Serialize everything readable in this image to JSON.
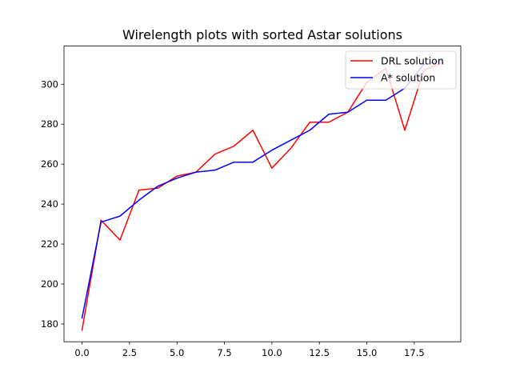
{
  "chart_data": {
    "type": "line",
    "title": "Wirelength plots with sorted Astar solutions",
    "xlabel": "",
    "ylabel": "",
    "xlim": [
      -0.95,
      19.95
    ],
    "ylim": [
      171.1,
      319.1
    ],
    "xticks": [
      0,
      2.5,
      5,
      7.5,
      10,
      12.5,
      15,
      17.5
    ],
    "xtick_labels": [
      "0.0",
      "2.5",
      "5.0",
      "7.5",
      "10.0",
      "12.5",
      "15.0",
      "17.5"
    ],
    "yticks": [
      180,
      200,
      220,
      240,
      260,
      280,
      300
    ],
    "ytick_labels": [
      "180",
      "200",
      "220",
      "240",
      "260",
      "280",
      "300"
    ],
    "grid": false,
    "legend_position": "top-right",
    "x": [
      0,
      1,
      2,
      3,
      4,
      5,
      6,
      7,
      8,
      9,
      10,
      11,
      12,
      13,
      14,
      15,
      16,
      17,
      18,
      19
    ],
    "series": [
      {
        "name": "DRL solution",
        "color": "#ff0000",
        "values": [
          177,
          232,
          222,
          247,
          248,
          254,
          256,
          265,
          269,
          277,
          258,
          268,
          281,
          281,
          286,
          301,
          308,
          277,
          307,
          311
        ]
      },
      {
        "name": "A* solution",
        "color": "#0000ff",
        "values": [
          183,
          231,
          234,
          242,
          249,
          253,
          256,
          257,
          261,
          261,
          267,
          272,
          277,
          285,
          286,
          292,
          292,
          298,
          310,
          312
        ]
      }
    ]
  }
}
